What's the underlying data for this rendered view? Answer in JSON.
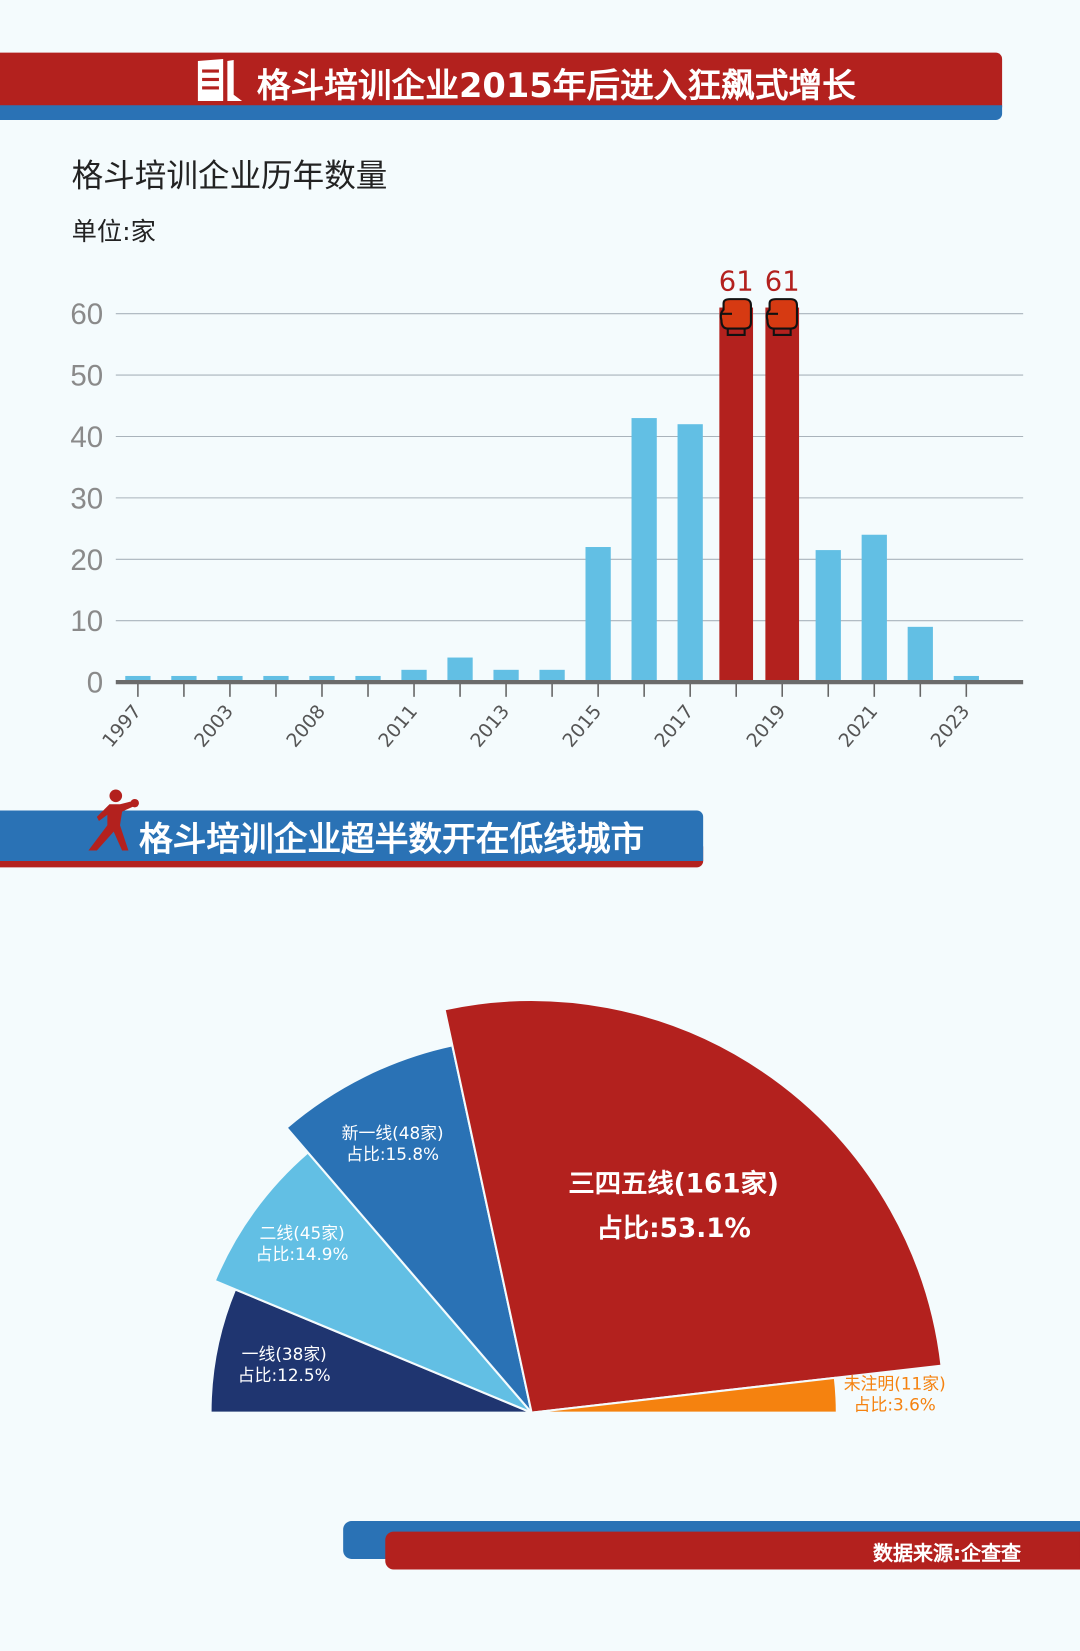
{
  "header1": {
    "title": "格斗培训企业2015年后进入狂飙式增长",
    "icon": "building-icon"
  },
  "header2": {
    "title": "格斗培训企业超半数开在低线城市",
    "icon": "boxer-icon"
  },
  "footer": {
    "source": "数据来源:企查查"
  },
  "colors": {
    "red": "#b3211e",
    "blue": "#2a72b5",
    "light_blue": "#62bfe4",
    "navy": "#1f3570",
    "orange": "#f5820f"
  },
  "chart_data": [
    {
      "type": "bar",
      "title": "格斗培训企业历年数量",
      "ylabel": "单位:家",
      "ylim": [
        0,
        60
      ],
      "yticks": [
        "0",
        "10",
        "20",
        "30",
        "40",
        "50",
        "60"
      ],
      "grid": true,
      "categories": [
        "1997",
        "",
        "2003",
        "",
        "2008",
        "",
        "2011",
        "",
        "2013",
        "",
        "2015",
        "",
        "2017",
        "",
        "2019",
        "",
        "2021",
        "",
        "2023"
      ],
      "values": [
        1,
        1,
        1,
        1,
        1,
        1,
        2,
        4,
        2,
        2,
        22,
        43,
        42,
        61,
        61,
        21.5,
        24,
        9,
        1
      ],
      "highlight": [
        13,
        14
      ],
      "data_labels": {
        "13": "61",
        "14": "61"
      },
      "highlight_icon": "boxing-glove-icon"
    },
    {
      "type": "pie",
      "subtype": "half-rose",
      "slices": [
        {
          "name": "一线",
          "count_label": "一线(38家)",
          "share_label": "占比:12.5%",
          "value": 38,
          "percent": 12.5,
          "color": "#1f3570"
        },
        {
          "name": "二线",
          "count_label": "二线(45家)",
          "share_label": "占比:14.9%",
          "value": 45,
          "percent": 14.9,
          "color": "#62bfe4"
        },
        {
          "name": "新一线",
          "count_label": "新一线(48家)",
          "share_label": "占比:15.8%",
          "value": 48,
          "percent": 15.8,
          "color": "#2a72b5"
        },
        {
          "name": "三四五线",
          "count_label": "三四五线(161家)",
          "share_label": "占比:53.1%",
          "value": 161,
          "percent": 53.1,
          "color": "#b3211e"
        },
        {
          "name": "未注明",
          "count_label": "未注明(11家)",
          "share_label": "占比:3.6%",
          "value": 11,
          "percent": 3.6,
          "color": "#f5820f"
        }
      ]
    }
  ]
}
